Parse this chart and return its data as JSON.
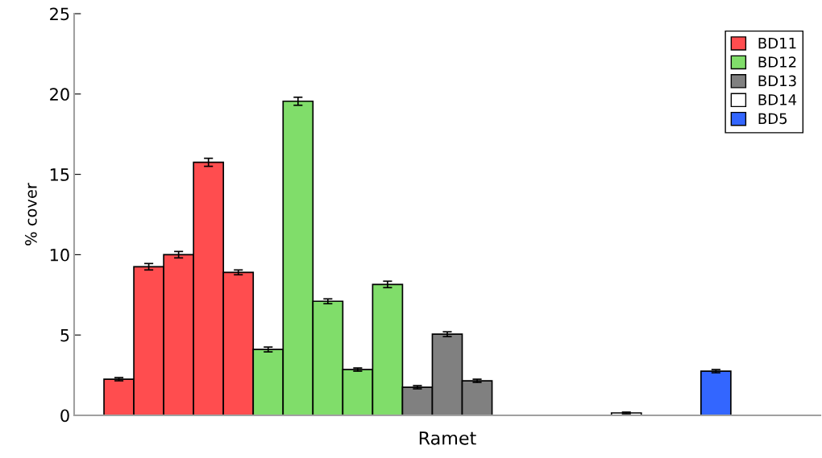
{
  "chart_data": {
    "type": "bar",
    "xlabel": "Ramet",
    "ylabel": "% cover",
    "categories": [
      null,
      null,
      null,
      null,
      null,
      null,
      null,
      null,
      null,
      null,
      null,
      null,
      null,
      null,
      null,
      null,
      null,
      null,
      null,
      null,
      null,
      null,
      null,
      null,
      null
    ],
    "series": [
      {
        "name": "BD11",
        "color": "#ff4d4f",
        "values": [
          null,
          2.25,
          9.25,
          10.0,
          15.75,
          8.9,
          null,
          null,
          null,
          null,
          null,
          null,
          null,
          null,
          null,
          null,
          null,
          null,
          null,
          null,
          null,
          null,
          null,
          null,
          null
        ],
        "errors": [
          null,
          0.1,
          0.2,
          0.2,
          0.25,
          0.15,
          null,
          null,
          null,
          null,
          null,
          null,
          null,
          null,
          null,
          null,
          null,
          null,
          null,
          null,
          null,
          null,
          null,
          null,
          null
        ]
      },
      {
        "name": "BD12",
        "color": "#80dd6a",
        "values": [
          null,
          null,
          null,
          null,
          null,
          null,
          4.1,
          19.55,
          7.1,
          2.85,
          8.15,
          null,
          null,
          null,
          null,
          null,
          null,
          null,
          null,
          null,
          null,
          null,
          null,
          null,
          null
        ],
        "errors": [
          null,
          null,
          null,
          null,
          null,
          null,
          0.15,
          0.25,
          0.15,
          0.1,
          0.2,
          null,
          null,
          null,
          null,
          null,
          null,
          null,
          null,
          null,
          null,
          null,
          null,
          null,
          null
        ]
      },
      {
        "name": "BD13",
        "color": "#808080",
        "values": [
          null,
          null,
          null,
          null,
          null,
          null,
          null,
          null,
          null,
          null,
          null,
          1.75,
          5.05,
          2.15,
          null,
          null,
          null,
          null,
          null,
          null,
          null,
          null,
          null,
          null,
          null
        ],
        "errors": [
          null,
          null,
          null,
          null,
          null,
          null,
          null,
          null,
          null,
          null,
          null,
          0.1,
          0.15,
          0.1,
          null,
          null,
          null,
          null,
          null,
          null,
          null,
          null,
          null,
          null,
          null
        ]
      },
      {
        "name": "BD14",
        "color": "#ffffff",
        "values": [
          null,
          null,
          null,
          null,
          null,
          null,
          null,
          null,
          null,
          null,
          null,
          null,
          null,
          null,
          null,
          null,
          null,
          null,
          0.15,
          null,
          null,
          null,
          null,
          null,
          null
        ],
        "errors": [
          null,
          null,
          null,
          null,
          null,
          null,
          null,
          null,
          null,
          null,
          null,
          null,
          null,
          null,
          null,
          null,
          null,
          null,
          0.05,
          null,
          null,
          null,
          null,
          null,
          null
        ]
      },
      {
        "name": "BD5",
        "color": "#3366ff",
        "values": [
          null,
          null,
          null,
          null,
          null,
          null,
          null,
          null,
          null,
          null,
          null,
          null,
          null,
          null,
          null,
          null,
          null,
          null,
          null,
          null,
          null,
          2.75,
          null,
          null,
          null
        ],
        "errors": [
          null,
          null,
          null,
          null,
          null,
          null,
          null,
          null,
          null,
          null,
          null,
          null,
          null,
          null,
          null,
          null,
          null,
          null,
          null,
          null,
          null,
          0.1,
          null,
          null,
          null
        ]
      }
    ],
    "ylim": [
      0,
      25
    ],
    "yticks": [
      0,
      5,
      10,
      15,
      20,
      25
    ],
    "tick_labels": "y",
    "legend": "top right"
  }
}
